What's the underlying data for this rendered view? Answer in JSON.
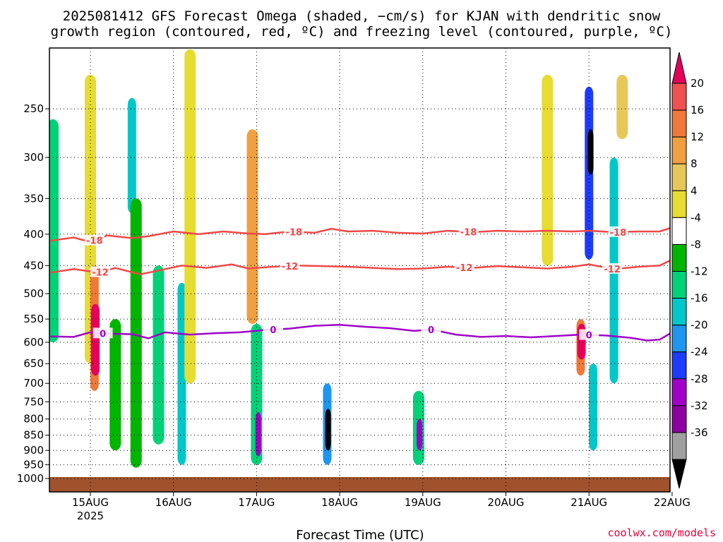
{
  "chart_data": {
    "type": "heatmap",
    "title": "2025081412 GFS Forecast Omega (shaded, −cm/s) for KJAN with dendritic snow growth region (contoured, red, ºC) and freezing level (contoured, purple, ºC)",
    "title_lines": [
      "2025081412 GFS Forecast Omega (shaded, −cm/s) for KJAN with dendritic snow",
      "growth region (contoured, red, ºC) and freezing level (contoured, purple, ºC)"
    ],
    "xlabel": "Forecast Time (UTC)",
    "ylabel": "",
    "x_ticks": [
      "15AUG",
      "16AUG",
      "17AUG",
      "18AUG",
      "19AUG",
      "20AUG",
      "21AUG",
      "22AUG"
    ],
    "x_tick_sub": "2025",
    "xlim_days": [
      14.52,
      22.0
    ],
    "y_ticks": [
      250,
      300,
      350,
      400,
      450,
      500,
      550,
      600,
      650,
      700,
      750,
      800,
      850,
      900,
      950,
      1000
    ],
    "ylim_hpa": [
      1000,
      200
    ],
    "y_scale": "log",
    "grid": true,
    "colorbar": {
      "labels": [
        "20",
        "16",
        "12",
        "8",
        "4",
        "-4",
        "-8",
        "-12",
        "-16",
        "-20",
        "-24",
        "-28",
        "-32",
        "-36"
      ],
      "colors": [
        "#e6005a",
        "#f05050",
        "#f07838",
        "#f0a040",
        "#e6c85a",
        "#e6dc32",
        "#ffffff",
        "#00b400",
        "#00d278",
        "#00c8c8",
        "#1e96f0",
        "#1e3cff",
        "#a000c8",
        "#8c00a0",
        "#a0a0a0",
        "#000000"
      ]
    },
    "contours": [
      {
        "name": "-18",
        "color": "#f04848",
        "label": "-18",
        "levels": [
          [
            14.52,
            410
          ],
          [
            14.8,
            405
          ],
          [
            15.0,
            412
          ],
          [
            15.2,
            402
          ],
          [
            15.5,
            406
          ],
          [
            15.7,
            403
          ],
          [
            16.0,
            396
          ],
          [
            16.3,
            400
          ],
          [
            16.6,
            396
          ],
          [
            16.9,
            399
          ],
          [
            17.1,
            400
          ],
          [
            17.4,
            396
          ],
          [
            17.7,
            398
          ],
          [
            17.9,
            392
          ],
          [
            18.1,
            396
          ],
          [
            18.4,
            395
          ],
          [
            18.7,
            398
          ],
          [
            19.0,
            399
          ],
          [
            19.3,
            395
          ],
          [
            19.6,
            397
          ],
          [
            19.9,
            395
          ],
          [
            20.2,
            396
          ],
          [
            20.5,
            395
          ],
          [
            20.8,
            396
          ],
          [
            21.0,
            395
          ],
          [
            21.3,
            397
          ],
          [
            21.6,
            396
          ],
          [
            21.85,
            396
          ],
          [
            22.0,
            390
          ]
        ]
      },
      {
        "name": "-12",
        "color": "#f04848",
        "label": "-12",
        "levels": [
          [
            14.52,
            462
          ],
          [
            14.8,
            456
          ],
          [
            15.1,
            462
          ],
          [
            15.3,
            454
          ],
          [
            15.6,
            465
          ],
          [
            15.9,
            456
          ],
          [
            16.1,
            450
          ],
          [
            16.4,
            454
          ],
          [
            16.7,
            448
          ],
          [
            16.9,
            455
          ],
          [
            17.2,
            452
          ],
          [
            17.5,
            450
          ],
          [
            17.8,
            451
          ],
          [
            18.1,
            452
          ],
          [
            18.4,
            454
          ],
          [
            18.7,
            456
          ],
          [
            19.0,
            455
          ],
          [
            19.3,
            452
          ],
          [
            19.6,
            454
          ],
          [
            19.9,
            451
          ],
          [
            20.2,
            453
          ],
          [
            20.5,
            455
          ],
          [
            20.8,
            452
          ],
          [
            21.0,
            448
          ],
          [
            21.3,
            456
          ],
          [
            21.6,
            452
          ],
          [
            21.85,
            450
          ],
          [
            22.0,
            440
          ]
        ]
      },
      {
        "name": "0",
        "color": "#a000c8",
        "label": "0",
        "levels": [
          [
            14.52,
            587
          ],
          [
            14.8,
            588
          ],
          [
            15.0,
            578
          ],
          [
            15.2,
            581
          ],
          [
            15.5,
            582
          ],
          [
            15.7,
            591
          ],
          [
            15.9,
            578
          ],
          [
            16.2,
            583
          ],
          [
            16.5,
            580
          ],
          [
            16.8,
            578
          ],
          [
            17.1,
            573
          ],
          [
            17.4,
            570
          ],
          [
            17.7,
            564
          ],
          [
            18.0,
            562
          ],
          [
            18.3,
            566
          ],
          [
            18.6,
            569
          ],
          [
            18.9,
            575
          ],
          [
            19.1,
            572
          ],
          [
            19.4,
            583
          ],
          [
            19.7,
            588
          ],
          [
            20.0,
            586
          ],
          [
            20.3,
            589
          ],
          [
            20.6,
            586
          ],
          [
            20.9,
            583
          ],
          [
            21.2,
            585
          ],
          [
            21.5,
            590
          ],
          [
            21.7,
            596
          ],
          [
            21.85,
            594
          ],
          [
            22.0,
            578
          ]
        ]
      }
    ],
    "updraft_cells": [
      {
        "day": 14.55,
        "p_top": 260,
        "p_bot": 600,
        "value": -12
      },
      {
        "day": 15.0,
        "p_top": 220,
        "p_bot": 650,
        "value": 4
      },
      {
        "day": 15.05,
        "p_top": 450,
        "p_bot": 720,
        "value": 16
      },
      {
        "day": 15.06,
        "p_top": 520,
        "p_bot": 680,
        "value": 20
      },
      {
        "day": 15.3,
        "p_top": 550,
        "p_bot": 900,
        "value": -8
      },
      {
        "day": 15.5,
        "p_top": 240,
        "p_bot": 370,
        "value": -16
      },
      {
        "day": 15.55,
        "p_top": 350,
        "p_bot": 960,
        "value": -8
      },
      {
        "day": 15.82,
        "p_top": 450,
        "p_bot": 880,
        "value": -12
      },
      {
        "day": 16.1,
        "p_top": 480,
        "p_bot": 950,
        "value": -16
      },
      {
        "day": 16.2,
        "p_top": 200,
        "p_bot": 700,
        "value": 4
      },
      {
        "day": 16.95,
        "p_top": 270,
        "p_bot": 560,
        "value": 12
      },
      {
        "day": 17.0,
        "p_top": 560,
        "p_bot": 950,
        "value": -12
      },
      {
        "day": 17.02,
        "p_top": 780,
        "p_bot": 920,
        "value": -28
      },
      {
        "day": 17.85,
        "p_top": 700,
        "p_bot": 950,
        "value": -20
      },
      {
        "day": 17.86,
        "p_top": 770,
        "p_bot": 900,
        "value": -36
      },
      {
        "day": 18.95,
        "p_top": 720,
        "p_bot": 950,
        "value": -12
      },
      {
        "day": 18.96,
        "p_top": 800,
        "p_bot": 900,
        "value": -28
      },
      {
        "day": 20.5,
        "p_top": 220,
        "p_bot": 450,
        "value": 4
      },
      {
        "day": 20.9,
        "p_top": 550,
        "p_bot": 680,
        "value": 16
      },
      {
        "day": 20.91,
        "p_top": 560,
        "p_bot": 640,
        "value": 20
      },
      {
        "day": 21.0,
        "p_top": 230,
        "p_bot": 440,
        "value": -24
      },
      {
        "day": 21.02,
        "p_top": 270,
        "p_bot": 320,
        "value": -36
      },
      {
        "day": 21.05,
        "p_top": 650,
        "p_bot": 900,
        "value": -16
      },
      {
        "day": 21.3,
        "p_top": 300,
        "p_bot": 700,
        "value": -16
      },
      {
        "day": 21.4,
        "p_top": 220,
        "p_bot": 280,
        "value": 8
      }
    ]
  },
  "credit": "coolwx.com/models"
}
